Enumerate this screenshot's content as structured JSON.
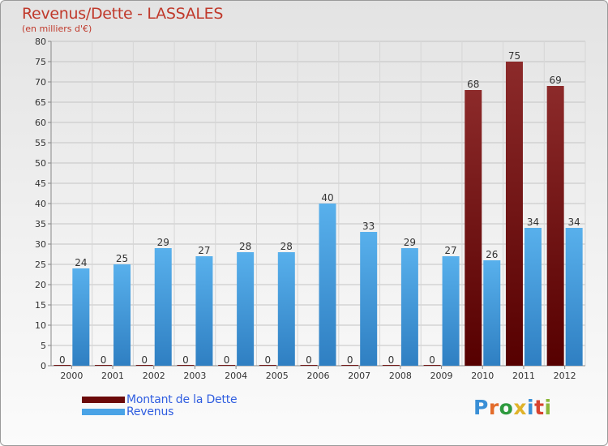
{
  "header": {
    "title": "Revenus/Dette - LASSALES",
    "subtitle": "(en milliers d'€)"
  },
  "brand": {
    "logo_text": "Proxiti",
    "letter_colors": [
      "#3a8fd6",
      "#e36c2b",
      "#2e9a3e",
      "#e0b32a",
      "#3a8fd6",
      "#d8432f",
      "#8bb83a"
    ]
  },
  "chart_data": {
    "type": "bar",
    "title": "Revenus/Dette - LASSALES",
    "subtitle": "(en milliers d'€)",
    "categories": [
      "2000",
      "2001",
      "2002",
      "2003",
      "2004",
      "2005",
      "2006",
      "2007",
      "2008",
      "2009",
      "2010",
      "2011",
      "2012"
    ],
    "series": [
      {
        "name": "Montant de la Dette",
        "color": "#6b0a0a",
        "values": [
          0,
          0,
          0,
          0,
          0,
          0,
          0,
          0,
          0,
          0,
          68,
          75,
          69
        ]
      },
      {
        "name": "Revenus",
        "color": "#4aa3e6",
        "values": [
          24,
          25,
          29,
          27,
          28,
          28,
          40,
          33,
          29,
          27,
          26,
          34,
          34
        ]
      }
    ],
    "ylim": [
      0,
      80
    ],
    "yticks": [
      0,
      5,
      10,
      15,
      20,
      25,
      30,
      35,
      40,
      45,
      50,
      55,
      60,
      65,
      70,
      75,
      80
    ],
    "grid": true,
    "legend": "bottom-left"
  }
}
